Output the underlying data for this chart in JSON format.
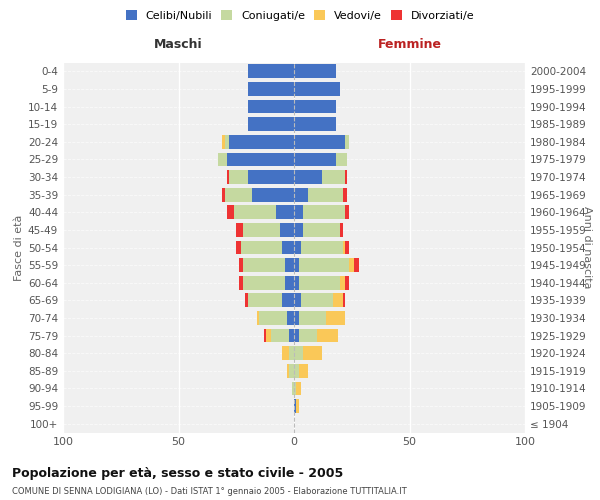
{
  "age_groups": [
    "100+",
    "95-99",
    "90-94",
    "85-89",
    "80-84",
    "75-79",
    "70-74",
    "65-69",
    "60-64",
    "55-59",
    "50-54",
    "45-49",
    "40-44",
    "35-39",
    "30-34",
    "25-29",
    "20-24",
    "15-19",
    "10-14",
    "5-9",
    "0-4"
  ],
  "birth_years": [
    "≤ 1904",
    "1905-1909",
    "1910-1914",
    "1915-1919",
    "1920-1924",
    "1925-1929",
    "1930-1934",
    "1935-1939",
    "1940-1944",
    "1945-1949",
    "1950-1954",
    "1955-1959",
    "1960-1964",
    "1965-1969",
    "1970-1974",
    "1975-1979",
    "1980-1984",
    "1985-1989",
    "1990-1994",
    "1995-1999",
    "2000-2004"
  ],
  "males": {
    "celibi": [
      0,
      0,
      0,
      0,
      0,
      2,
      3,
      5,
      4,
      4,
      5,
      6,
      8,
      18,
      20,
      29,
      28,
      20,
      20,
      20,
      20
    ],
    "coniugati": [
      0,
      0,
      1,
      2,
      2,
      8,
      12,
      15,
      18,
      18,
      18,
      16,
      18,
      12,
      8,
      4,
      2,
      0,
      0,
      0,
      0
    ],
    "vedovi": [
      0,
      0,
      0,
      1,
      3,
      2,
      1,
      0,
      0,
      0,
      0,
      0,
      0,
      0,
      0,
      0,
      1,
      0,
      0,
      0,
      0
    ],
    "divorziati": [
      0,
      0,
      0,
      0,
      0,
      1,
      0,
      1,
      2,
      2,
      2,
      3,
      3,
      1,
      1,
      0,
      0,
      0,
      0,
      0,
      0
    ]
  },
  "females": {
    "nubili": [
      0,
      1,
      0,
      0,
      0,
      2,
      2,
      3,
      2,
      2,
      3,
      4,
      4,
      6,
      12,
      18,
      22,
      18,
      18,
      20,
      18
    ],
    "coniugate": [
      0,
      0,
      1,
      2,
      4,
      8,
      12,
      14,
      18,
      22,
      18,
      16,
      18,
      15,
      10,
      5,
      2,
      0,
      0,
      0,
      0
    ],
    "vedove": [
      0,
      1,
      2,
      4,
      8,
      9,
      8,
      4,
      2,
      2,
      1,
      0,
      0,
      0,
      0,
      0,
      0,
      0,
      0,
      0,
      0
    ],
    "divorziate": [
      0,
      0,
      0,
      0,
      0,
      0,
      0,
      1,
      2,
      2,
      2,
      1,
      2,
      2,
      1,
      0,
      0,
      0,
      0,
      0,
      0
    ]
  },
  "colors": {
    "celibi": "#4472C4",
    "coniugati": "#C5D9A0",
    "vedovi": "#FAC858",
    "divorziati": "#EE3333"
  },
  "title": "Popolazione per età, sesso e stato civile - 2005",
  "subtitle": "COMUNE DI SENNA LODIGIANA (LO) - Dati ISTAT 1° gennaio 2005 - Elaborazione TUTTITALIA.IT",
  "xlabel_left": "Maschi",
  "xlabel_right": "Femmine",
  "ylabel_left": "Fasce di età",
  "ylabel_right": "Anni di nascita",
  "xlim": 100,
  "legend_labels": [
    "Celibi/Nubili",
    "Coniugati/e",
    "Vedovi/e",
    "Divorziati/e"
  ],
  "bg_color": "#f0f0f0"
}
